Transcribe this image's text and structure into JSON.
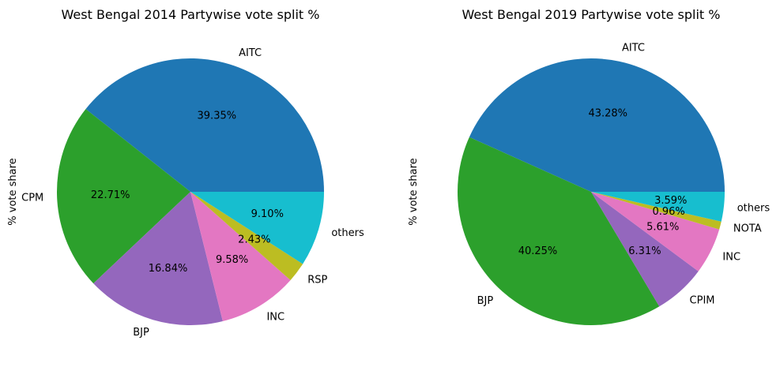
{
  "chart_data": [
    {
      "type": "pie",
      "title": "West Bengal 2014 Partywise vote split %",
      "ylabel": "% vote share",
      "start": "counterclockwise from the right (3 o'clock)",
      "categories": [
        "AITC",
        "CPM",
        "BJP",
        "INC",
        "RSP",
        "others"
      ],
      "values": [
        39.35,
        22.71,
        16.84,
        9.58,
        2.43,
        9.1
      ],
      "value_labels": [
        "39.35%",
        "22.71%",
        "16.84%",
        "9.58%",
        "2.43%",
        "9.10%"
      ],
      "colors": [
        "#1f77b4",
        "#2ca02c",
        "#9467bd",
        "#e377c2",
        "#bcbd22",
        "#17becf"
      ]
    },
    {
      "type": "pie",
      "title": "West Bengal 2019 Partywise vote split %",
      "ylabel": "% vote share",
      "start": "counterclockwise from the right (3 o'clock)",
      "categories": [
        "AITC",
        "BJP",
        "CPIM",
        "INC",
        "NOTA",
        "others"
      ],
      "values": [
        43.28,
        40.25,
        6.31,
        5.61,
        0.96,
        3.59
      ],
      "value_labels": [
        "43.28%",
        "40.25%",
        "6.31%",
        "5.61%",
        "0.96%",
        "3.59%"
      ],
      "colors": [
        "#1f77b4",
        "#2ca02c",
        "#9467bd",
        "#e377c2",
        "#bcbd22",
        "#17becf"
      ]
    }
  ]
}
